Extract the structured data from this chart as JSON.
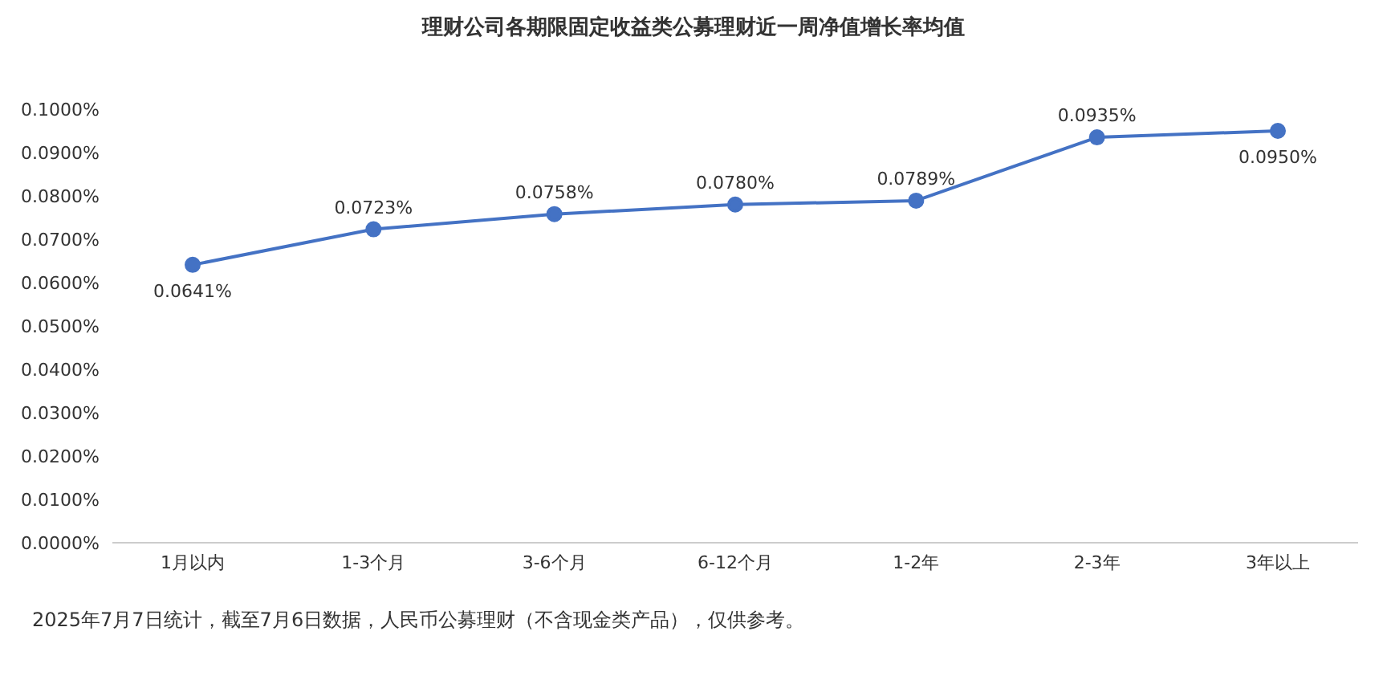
{
  "chart_data": {
    "type": "line",
    "title": "理财公司各期限固定收益类公募理财近一周净值增长率均值",
    "categories": [
      "1月以内",
      "1-3个月",
      "3-6个月",
      "6-12个月",
      "1-2年",
      "2-3年",
      "3年以上"
    ],
    "series": [
      {
        "color": "#4472c4",
        "values": [
          0.0641,
          0.0723,
          0.0758,
          0.078,
          0.0789,
          0.0935,
          0.095
        ],
        "value_labels": [
          "0.0641%",
          "0.0723%",
          "0.0758%",
          "0.0780%",
          "0.0789%",
          "0.0935%",
          "0.0950%"
        ]
      }
    ],
    "ylim": [
      0,
      0.1
    ],
    "yticks": [
      {
        "value": 0,
        "label": "0.0000%"
      },
      {
        "value": 0.01,
        "label": "0.0100%"
      },
      {
        "value": 0.02,
        "label": "0.0200%"
      },
      {
        "value": 0.03,
        "label": "0.0300%"
      },
      {
        "value": 0.04,
        "label": "0.0400%"
      },
      {
        "value": 0.05,
        "label": "0.0500%"
      },
      {
        "value": 0.06,
        "label": "0.0600%"
      },
      {
        "value": 0.07,
        "label": "0.0700%"
      },
      {
        "value": 0.08,
        "label": "0.0800%"
      },
      {
        "value": 0.09,
        "label": "0.0900%"
      },
      {
        "value": 0.1,
        "label": "0.1000%"
      }
    ],
    "grid": false,
    "legend": false,
    "marker": "circle",
    "line_style": "solid",
    "annotations": [
      "2025年7月7日统计，截至7月6日数据，人民币公募理财（不含现金类产品），仅供参考。"
    ]
  }
}
